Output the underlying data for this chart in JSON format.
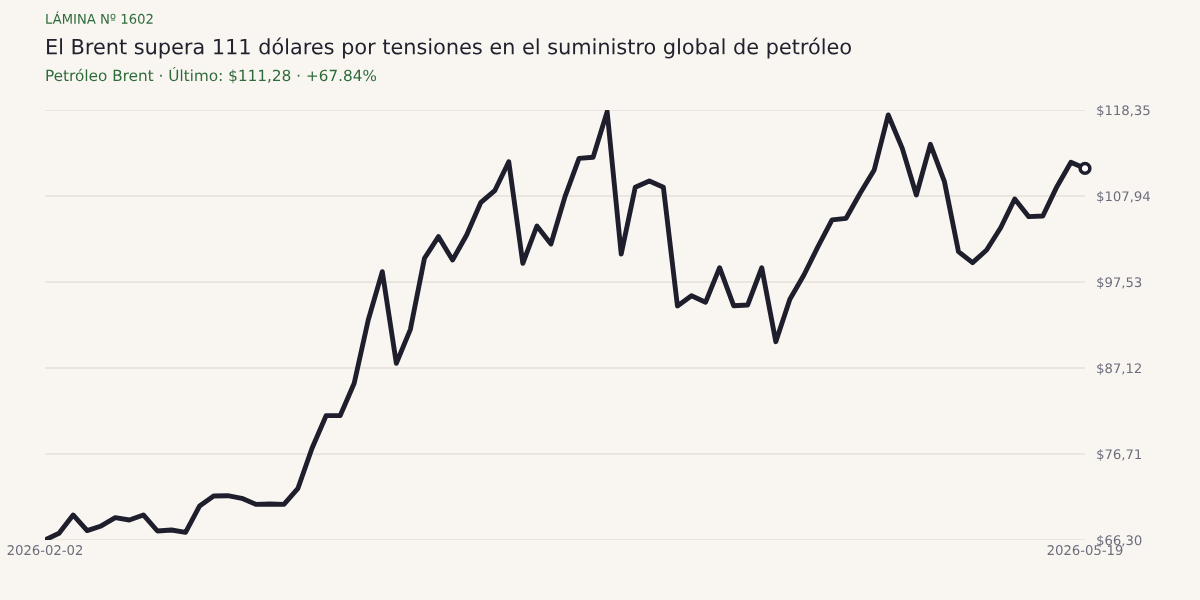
{
  "chart_data": {
    "type": "line",
    "title": "El Brent supera 111 dólares por tensiones en el suministro global de petróleo",
    "subtitle": "Petróleo Brent · Último: $111,28 · +67.84%",
    "annotations": [
      "LÁMINA Nº 1602"
    ],
    "categories": [
      "2026-02-02",
      null,
      null,
      null,
      null,
      null,
      null,
      null,
      null,
      null,
      null,
      null,
      null,
      null,
      null,
      null,
      null,
      null,
      null,
      null,
      null,
      null,
      null,
      null,
      null,
      null,
      null,
      null,
      null,
      null,
      null,
      null,
      null,
      null,
      null,
      null,
      null,
      null,
      null,
      null,
      null,
      null,
      null,
      null,
      null,
      null,
      null,
      null,
      null,
      null,
      null,
      null,
      null,
      null,
      null,
      null,
      null,
      null,
      null,
      null,
      null,
      null,
      null,
      null,
      null,
      null,
      null,
      null,
      null,
      null,
      null,
      null,
      null,
      null,
      "2026-05-19"
    ],
    "series": [
      {
        "type": "line",
        "color": "#1e1e2c",
        "line_style": "solid",
        "marker": "none",
        "values": [
          66.3,
          67.11,
          69.33,
          67.43,
          68.0,
          69.0,
          68.72,
          69.33,
          67.39,
          67.51,
          67.23,
          70.42,
          71.63,
          71.66,
          71.35,
          70.62,
          70.66,
          70.62,
          72.56,
          77.4,
          81.35,
          81.35,
          85.27,
          92.93,
          98.78,
          87.69,
          91.8,
          100.4,
          103.02,
          100.19,
          103.22,
          107.13,
          108.58,
          112.09,
          99.79,
          104.31,
          102.13,
          107.86,
          112.5,
          112.63,
          118.15,
          100.92,
          108.99,
          109.76,
          108.99,
          94.63,
          95.87,
          95.07,
          99.26,
          94.66,
          94.75,
          99.26,
          90.3,
          95.44,
          98.38,
          101.81,
          105.04,
          105.24,
          108.27,
          111.09,
          117.75,
          113.71,
          108.06,
          114.2,
          109.67,
          101.2,
          99.87,
          101.4,
          104.1,
          107.58,
          105.44,
          105.52,
          109.07,
          112.02,
          111.28
        ]
      },
      {
        "type": "scatter",
        "color": "#1e1e2c",
        "marker": "circle",
        "values": [
          null,
          null,
          null,
          null,
          null,
          null,
          null,
          null,
          null,
          null,
          null,
          null,
          null,
          null,
          null,
          null,
          null,
          null,
          null,
          null,
          null,
          null,
          null,
          null,
          null,
          null,
          null,
          null,
          null,
          null,
          null,
          null,
          null,
          null,
          null,
          null,
          null,
          null,
          null,
          null,
          null,
          null,
          null,
          null,
          null,
          null,
          null,
          null,
          null,
          null,
          null,
          null,
          null,
          null,
          null,
          null,
          null,
          null,
          null,
          null,
          null,
          null,
          null,
          null,
          null,
          null,
          null,
          null,
          null,
          null,
          null,
          null,
          null,
          null,
          111.28
        ]
      }
    ],
    "ylim": [
      66.3,
      118.35
    ],
    "yticks": [
      {
        "value": 66.3,
        "label": "$66,30"
      },
      {
        "value": 76.71,
        "label": "$76,71"
      },
      {
        "value": 87.12,
        "label": "$87,12"
      },
      {
        "value": 97.53,
        "label": "$97,53"
      },
      {
        "value": 107.94,
        "label": "$107,94"
      },
      {
        "value": 118.35,
        "label": "$118,35"
      }
    ],
    "grid": "y",
    "legend": false
  }
}
